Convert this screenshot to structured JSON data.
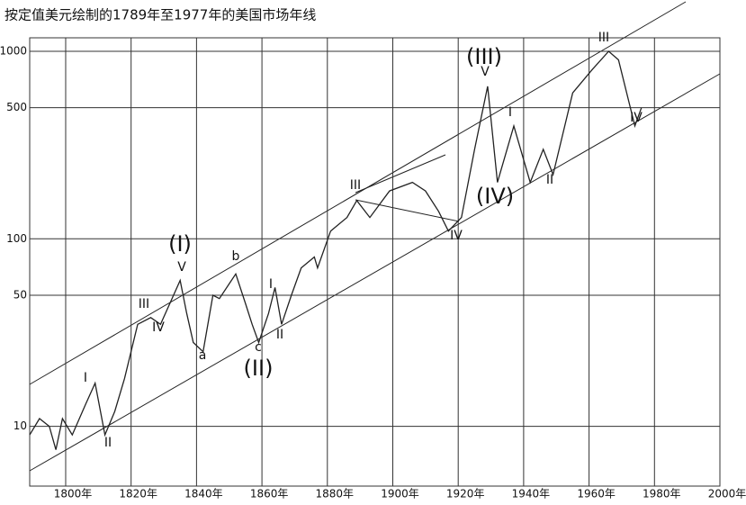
{
  "chart_data": {
    "type": "line",
    "title": "按定值美元绘制的1789年至1977年的美国市场年线",
    "log_scale_y": true,
    "grid": true,
    "color": "#222222",
    "xlim": [
      1789,
      2000
    ],
    "ylim": [
      4.8,
      1180
    ],
    "xticks": [
      {
        "value": 1800,
        "label": "1800年"
      },
      {
        "value": 1820,
        "label": "1820年"
      },
      {
        "value": 1840,
        "label": "1840年"
      },
      {
        "value": 1860,
        "label": "1860年"
      },
      {
        "value": 1880,
        "label": "1880年"
      },
      {
        "value": 1900,
        "label": "1900年"
      },
      {
        "value": 1920,
        "label": "1920年"
      },
      {
        "value": 1940,
        "label": "1940年"
      },
      {
        "value": 1960,
        "label": "1960年"
      },
      {
        "value": 1980,
        "label": "1980年"
      },
      {
        "value": 2000,
        "label": "2000年"
      }
    ],
    "yticks": [
      10,
      50,
      100,
      500,
      1000
    ],
    "x": [
      1789,
      1792,
      1795,
      1797,
      1799,
      1802,
      1806,
      1809,
      1812,
      1815,
      1818,
      1822,
      1826,
      1829,
      1835,
      1837,
      1839,
      1842,
      1845,
      1847,
      1852,
      1855,
      1857,
      1859,
      1862,
      1864,
      1866,
      1869,
      1872,
      1876,
      1877,
      1881,
      1886,
      1889,
      1893,
      1899,
      1906,
      1910,
      1914,
      1917,
      1921,
      1925,
      1929,
      1932,
      1937,
      1942,
      1946,
      1949,
      1955,
      1961,
      1966,
      1969,
      1974,
      1976
    ],
    "values": [
      9,
      11,
      10,
      7.5,
      11,
      9,
      13,
      17,
      9,
      12,
      18,
      35,
      38,
      35,
      60,
      40,
      28,
      25,
      50,
      48,
      65,
      45,
      35,
      28,
      40,
      55,
      35,
      50,
      70,
      80,
      70,
      110,
      130,
      160,
      130,
      180,
      200,
      180,
      140,
      110,
      130,
      300,
      650,
      200,
      400,
      200,
      300,
      220,
      600,
      800,
      1000,
      900,
      400,
      500
    ],
    "annotations": [
      "(I)",
      "V",
      "I",
      "II",
      "III",
      "IV",
      "a",
      "b",
      "c",
      "(II)",
      "I",
      "II",
      "III",
      "IV",
      "(III)",
      "V",
      "I",
      "(IV)",
      "II",
      "III",
      "IV"
    ]
  }
}
